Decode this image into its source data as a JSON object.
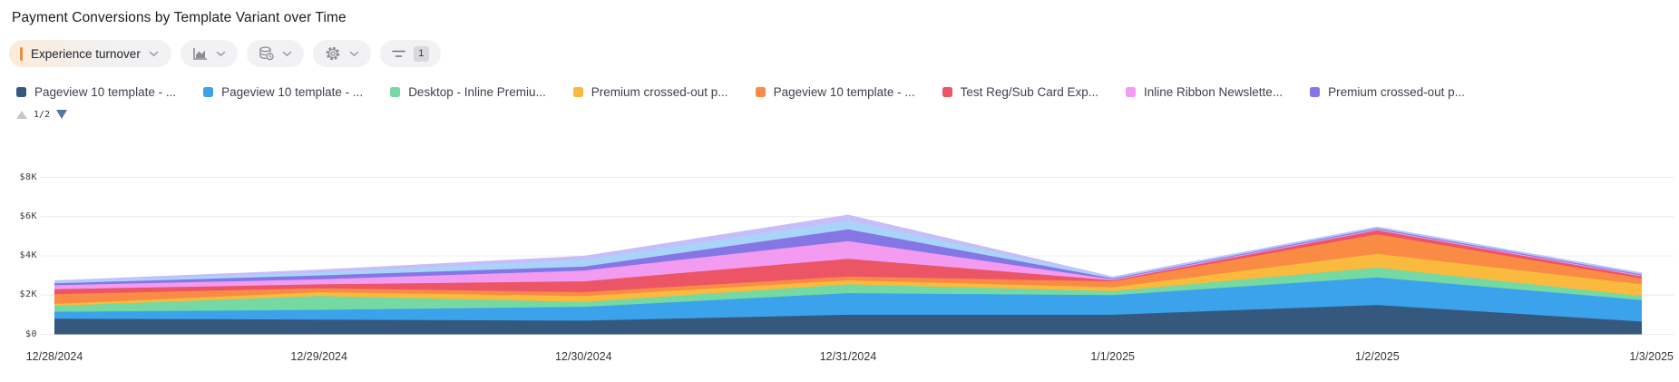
{
  "header": {
    "title": "Payment Conversions by Template Variant over Time"
  },
  "toolbar": {
    "metric_pill": {
      "label": "Experience turnover",
      "accent_color": "#ee8a3e"
    },
    "chart_type_button": {
      "icon": "area-chart-icon"
    },
    "data_source_button": {
      "icon": "database-clock-icon"
    },
    "settings_button": {
      "icon": "gear-icon"
    },
    "filter_button": {
      "icon": "filter-lines-icon",
      "badge_count": "1"
    }
  },
  "legend": {
    "items": [
      {
        "label": "Pageview 10 template - ...",
        "color": "#35597e"
      },
      {
        "label": "Pageview 10 template - ...",
        "color": "#3ba3ec"
      },
      {
        "label": "Desktop - Inline Premiu...",
        "color": "#74d9a2"
      },
      {
        "label": "Premium crossed-out p...",
        "color": "#f9ba3d"
      },
      {
        "label": "Pageview 10 template - ...",
        "color": "#f98b45"
      },
      {
        "label": "Test Reg/Sub Card Exp...",
        "color": "#eb5565"
      },
      {
        "label": "Inline Ribbon Newslette...",
        "color": "#f29bf0"
      },
      {
        "label": "Premium crossed-out p...",
        "color": "#8476e5"
      }
    ],
    "pager": {
      "page_text": "1/2",
      "up_enabled": false,
      "down_enabled": true
    }
  },
  "chart_data": {
    "type": "area",
    "stacked": true,
    "grid": true,
    "legend_position": "top",
    "value_unit": "USD",
    "categories": [
      "12/28/2024",
      "12/29/2024",
      "12/30/2024",
      "12/31/2024",
      "1/1/2025",
      "1/2/2025",
      "1/3/2025"
    ],
    "xlabel": "",
    "ylabel": "",
    "ylim": [
      0,
      8000
    ],
    "y_ticks": [
      {
        "label": "$0",
        "value": 0
      },
      {
        "label": "$2K",
        "value": 2000
      },
      {
        "label": "$4K",
        "value": 4000
      },
      {
        "label": "$6K",
        "value": 6000
      },
      {
        "label": "$8K",
        "value": 8000
      }
    ],
    "series": [
      {
        "name": "Pageview 10 template - ...",
        "color": "#35597e",
        "legend_visible": true,
        "values": [
          800,
          750,
          700,
          1000,
          1000,
          1500,
          650
        ]
      },
      {
        "name": "Pageview 10 template - ...",
        "color": "#3ba3ec",
        "legend_visible": true,
        "values": [
          350,
          500,
          700,
          1100,
          1000,
          1400,
          1100
        ]
      },
      {
        "name": "Desktop - Inline Premiu...",
        "color": "#74d9a2",
        "legend_visible": true,
        "values": [
          300,
          700,
          250,
          450,
          200,
          500,
          200
        ]
      },
      {
        "name": "Premium crossed-out p...",
        "color": "#f9ba3d",
        "legend_visible": true,
        "values": [
          100,
          200,
          300,
          200,
          200,
          700,
          600
        ]
      },
      {
        "name": "Pageview 10 template - ...",
        "color": "#f98b45",
        "legend_visible": true,
        "values": [
          500,
          200,
          200,
          200,
          300,
          1000,
          300
        ]
      },
      {
        "name": "Test Reg/Sub Card Exp...",
        "color": "#eb5565",
        "legend_visible": true,
        "values": [
          250,
          200,
          550,
          900,
          50,
          200,
          100
        ]
      },
      {
        "name": "Inline Ribbon Newslette...",
        "color": "#f29bf0",
        "legend_visible": true,
        "values": [
          200,
          250,
          550,
          900,
          50,
          50,
          50
        ]
      },
      {
        "name": "Premium crossed-out p...",
        "color": "#8476e5",
        "legend_visible": true,
        "values": [
          100,
          200,
          200,
          600,
          50,
          50,
          50
        ]
      },
      {
        "name": "",
        "color": "#a9d4fa",
        "legend_visible": false,
        "values": [
          100,
          150,
          350,
          450,
          50,
          50,
          50
        ]
      },
      {
        "name": "",
        "color": "#c6bdf9",
        "legend_visible": false,
        "values": [
          50,
          150,
          200,
          300,
          50,
          50,
          50
        ]
      }
    ]
  }
}
